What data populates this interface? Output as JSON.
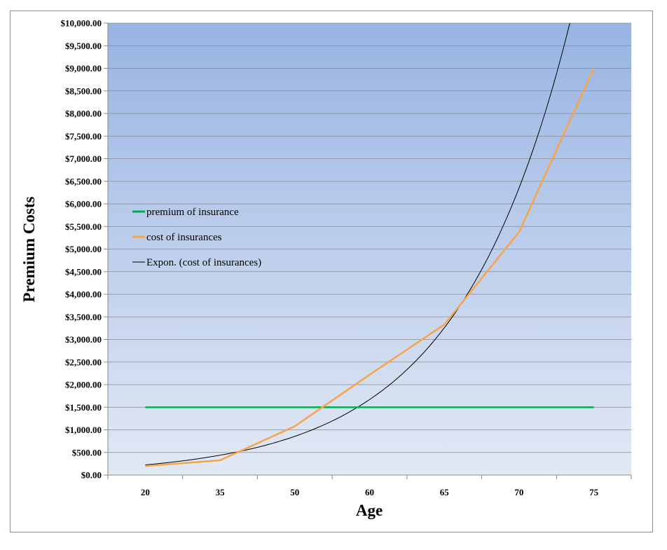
{
  "chart_data": {
    "type": "line",
    "title": "",
    "xlabel": "Age",
    "ylabel": "Premium Costs",
    "categories": [
      "20",
      "35",
      "50",
      "60",
      "65",
      "70",
      "75"
    ],
    "ylim": [
      0,
      10000
    ],
    "y_ticks": [
      "$0.00",
      "$500.00",
      "$1,000.00",
      "$1,500.00",
      "$2,000.00",
      "$2,500.00",
      "$3,000.00",
      "$3,500.00",
      "$4,000.00",
      "$4,500.00",
      "$5,000.00",
      "$5,500.00",
      "$6,000.00",
      "$6,500.00",
      "$7,000.00",
      "$7,500.00",
      "$8,000.00",
      "$8,500.00",
      "$9,000.00",
      "$9,500.00",
      "$10,000.00"
    ],
    "grid": true,
    "legend_position": "left-middle",
    "series": [
      {
        "name": "premium of insurance",
        "color": "#00b050",
        "values": [
          1500,
          1500,
          1500,
          1500,
          1500,
          1500,
          1500
        ]
      },
      {
        "name": "cost of insurances",
        "color": "#f7a44a",
        "values": [
          200,
          325,
          1080,
          2220,
          3330,
          5380,
          9000
        ]
      }
    ],
    "trendline": {
      "name": "Expon. (cost of insurances)",
      "type": "exponential",
      "of_series": "cost of insurances",
      "color": "#000000",
      "values": [
        225,
        440,
        860,
        1670,
        3260,
        6360,
        12400
      ]
    },
    "background_gradient": [
      "#98b4e3",
      "#e2e9f5"
    ]
  }
}
